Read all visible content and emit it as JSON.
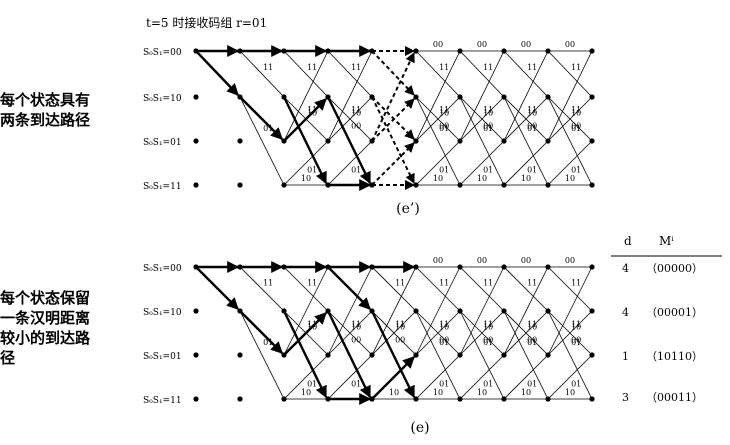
{
  "header": "t=5 时接收码组 r=01",
  "side_label_top": [
    "每个状态具有",
    "两条到达路径"
  ],
  "side_label_bottom": [
    "每个状态保留",
    "一条汉明距离",
    "较小的到达路",
    "径"
  ],
  "states": [
    "S₀S₁=00",
    "S₀S₁=10",
    "S₀S₁=01",
    "S₀S₁=11"
  ],
  "branch_labels": {
    "from00_to00": "00",
    "from00_to10": "11",
    "from10_to01": "10",
    "from10_to11": "01",
    "from01_to00": "11",
    "from01_to10": "00",
    "from11_to01": "01",
    "from11_to11": "10"
  },
  "caption_top": "(e’)",
  "caption_bottom": "(e)",
  "table": {
    "header_d": "d",
    "header_m": "Mⁱ",
    "rows": [
      {
        "d": "4",
        "m": "（00000）"
      },
      {
        "d": "4",
        "m": "（00001）"
      },
      {
        "d": "1",
        "m": "（10110）"
      },
      {
        "d": "3",
        "m": "（00011）"
      }
    ]
  }
}
